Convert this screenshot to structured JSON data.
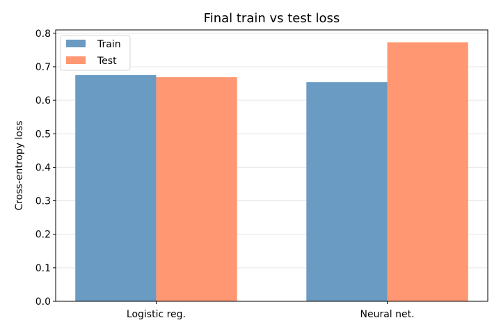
{
  "chart_data": {
    "type": "bar",
    "title": "Final train vs test loss",
    "xlabel": "",
    "ylabel": "Cross-entropy loss",
    "categories": [
      "Logistic reg.",
      "Neural net."
    ],
    "series": [
      {
        "name": "Train",
        "values": [
          0.675,
          0.654
        ],
        "color": "#6a9bc3"
      },
      {
        "name": "Test",
        "values": [
          0.669,
          0.773
        ],
        "color": "#ff9872"
      }
    ],
    "ylim": [
      0,
      0.81
    ],
    "yticks": [
      0.0,
      0.1,
      0.2,
      0.3,
      0.4,
      0.5,
      0.6,
      0.7,
      0.8
    ],
    "ytick_labels": [
      "0.0",
      "0.1",
      "0.2",
      "0.3",
      "0.4",
      "0.5",
      "0.6",
      "0.7",
      "0.8"
    ],
    "grid": "y",
    "legend": "upper-left"
  }
}
